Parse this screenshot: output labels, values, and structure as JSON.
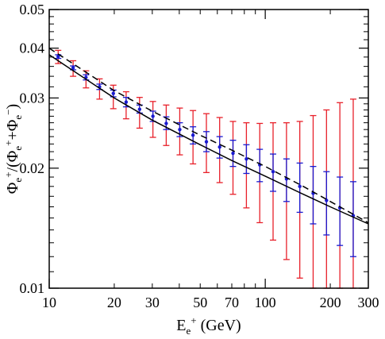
{
  "chart_data": {
    "type": "scatter",
    "title": "",
    "x_scale": "log",
    "y_scale": "log",
    "xlim": [
      10,
      300
    ],
    "ylim": [
      0.01,
      0.05
    ],
    "grid": false,
    "xlabel": {
      "main": "E",
      "sub": "e",
      "sup": "+",
      "unit": " (GeV)"
    },
    "ylabel": {
      "phi": "Φ",
      "sub_pos": "e",
      "sup_pos": "+",
      "slash_open": "/(",
      "plus": "+",
      "sub_neg": "e",
      "sup_neg": "−",
      "close": ")"
    },
    "x_ticks": [
      {
        "value": 10,
        "label": "10"
      },
      {
        "value": 20,
        "label": "20"
      },
      {
        "value": 30,
        "label": "30"
      },
      {
        "value": 50,
        "label": "50"
      },
      {
        "value": 70,
        "label": "70"
      },
      {
        "value": 100,
        "label": "100"
      },
      {
        "value": 200,
        "label": "200"
      },
      {
        "value": 300,
        "label": "300"
      }
    ],
    "y_ticks": [
      {
        "value": 0.01,
        "label": "0.01"
      },
      {
        "value": 0.02,
        "label": "0.02"
      },
      {
        "value": 0.03,
        "label": "0.03"
      },
      {
        "value": 0.04,
        "label": "0.04"
      },
      {
        "value": 0.05,
        "label": "0.05"
      }
    ],
    "colors": {
      "axes": "#000000",
      "red_errorbars": "#e8202a",
      "blue_errorbars": "#1a1ad0",
      "points": "#1a1ad0",
      "solid_curve": "#000000",
      "dashed_curve": "#000000"
    },
    "series": [
      {
        "style": "errorbars-red",
        "x": [
          11.0,
          12.9,
          14.8,
          17.1,
          19.8,
          22.7,
          26.2,
          30.2,
          34.8,
          40.2,
          46.3,
          53.4,
          61.5,
          70.9,
          81.8,
          94.3,
          108.7,
          125.4,
          144.5,
          166.6,
          192.1,
          221.5,
          255.4
        ],
        "low": [
          0.0366,
          0.034,
          0.0318,
          0.0298,
          0.0282,
          0.0266,
          0.0252,
          0.0239,
          0.0228,
          0.0216,
          0.0205,
          0.0195,
          0.0184,
          0.0172,
          0.0159,
          0.0146,
          0.0132,
          0.0118,
          0.0106,
          0.01,
          0.01,
          0.01,
          0.01
        ],
        "high": [
          0.0395,
          0.0372,
          0.0351,
          0.0335,
          0.0323,
          0.0311,
          0.0301,
          0.0294,
          0.0288,
          0.0283,
          0.0279,
          0.0274,
          0.0268,
          0.0262,
          0.026,
          0.0259,
          0.026,
          0.026,
          0.0262,
          0.0271,
          0.028,
          0.0292,
          0.0298
        ]
      },
      {
        "style": "errorbars-blue",
        "x": [
          11.0,
          12.9,
          14.8,
          17.1,
          19.8,
          22.7,
          26.2,
          30.2,
          34.8,
          40.2,
          46.3,
          53.4,
          61.5,
          70.9,
          81.8,
          94.3,
          108.7,
          125.4,
          144.5,
          166.6,
          192.1,
          221.5,
          255.4
        ],
        "low": [
          0.0377,
          0.0353,
          0.0333,
          0.0315,
          0.0302,
          0.0285,
          0.0275,
          0.0262,
          0.025,
          0.024,
          0.023,
          0.022,
          0.0212,
          0.0202,
          0.0194,
          0.0185,
          0.0175,
          0.0165,
          0.0155,
          0.0145,
          0.0136,
          0.0128,
          0.012
        ],
        "high": [
          0.0385,
          0.0361,
          0.0343,
          0.0325,
          0.0314,
          0.0301,
          0.0288,
          0.0278,
          0.0269,
          0.026,
          0.0254,
          0.0247,
          0.024,
          0.0235,
          0.0229,
          0.0223,
          0.0217,
          0.0211,
          0.0206,
          0.0202,
          0.0196,
          0.019,
          0.0185
        ]
      },
      {
        "style": "points",
        "x": [
          11.0,
          12.9,
          14.8,
          17.1,
          19.8,
          22.7,
          26.2,
          30.2,
          34.8,
          40.2,
          46.3,
          53.4,
          61.5,
          70.9,
          81.8,
          94.3,
          108.7,
          125.4,
          144.5,
          166.6,
          192.1,
          221.5,
          255.4
        ],
        "y": [
          0.0381,
          0.0357,
          0.0338,
          0.032,
          0.0308,
          0.0293,
          0.0281,
          0.027,
          0.0259,
          0.025,
          0.0242,
          0.0233,
          0.0226,
          0.0218,
          0.0211,
          0.0204,
          0.0196,
          0.0188,
          0.018,
          0.0173,
          0.0166,
          0.0159,
          0.0152
        ]
      },
      {
        "style": "solid-curve",
        "x": [
          10,
          20,
          30,
          50,
          70,
          100,
          150,
          200,
          300
        ],
        "y": [
          0.0385,
          0.03,
          0.0264,
          0.0229,
          0.0209,
          0.0191,
          0.0172,
          0.016,
          0.0145
        ]
      },
      {
        "style": "dashed-curve",
        "x": [
          10,
          20,
          30,
          50,
          70,
          100,
          150,
          200,
          300
        ],
        "y": [
          0.04,
          0.0313,
          0.0278,
          0.0242,
          0.0222,
          0.0202,
          0.018,
          0.0165,
          0.0146
        ]
      }
    ]
  }
}
